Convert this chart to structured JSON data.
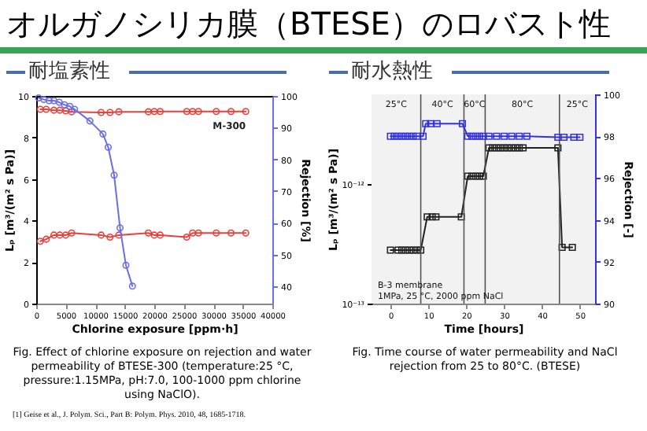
{
  "chart_data": [
    {
      "type": "line",
      "title": "オルガノシリカ膜（BTESE）のロバスト性",
      "subtitle": "耐塩素性",
      "xlabel": "Chlorine exposure [ppm·h]",
      "ylabel": "Lₚ [m³/(m² s Pa)]",
      "y2label": "Rejection [%]",
      "xlim": [
        0,
        40000
      ],
      "xticks": [
        0,
        5000,
        10000,
        15000,
        20000,
        25000,
        30000,
        35000,
        40000
      ],
      "ylim": [
        0,
        10
      ],
      "yticks": [
        0,
        2,
        4,
        6,
        8,
        10
      ],
      "y2lim": [
        34.5,
        100
      ],
      "y2ticks": [
        40,
        50,
        60,
        70,
        80,
        90,
        100
      ],
      "marker": "circle",
      "series": [
        {
          "name": "M-300",
          "color": "#e8413c",
          "axis": "y2",
          "x": [
            700,
            1700,
            3000,
            4000,
            5000,
            6000,
            11000,
            12500,
            14000,
            19000,
            20000,
            21000,
            25500,
            26500,
            27500,
            30500,
            33000,
            35500
          ],
          "values": [
            95.8,
            95.8,
            95.5,
            95.5,
            95.3,
            95,
            94.8,
            94.8,
            95,
            95,
            95.1,
            95.1,
            95.1,
            95.1,
            95.1,
            95.1,
            95.1,
            95.1
          ]
        },
        {
          "color": "#e8413c",
          "x": [
            700,
            1700,
            3000,
            4000,
            5000,
            6000,
            11000,
            12500,
            14000,
            19000,
            20000,
            21000,
            25500,
            26500,
            27500,
            30500,
            33000,
            35500
          ],
          "values": [
            3.0,
            3.1,
            3.3,
            3.3,
            3.3,
            3.4,
            3.3,
            3.2,
            3.3,
            3.4,
            3.3,
            3.3,
            3.2,
            3.4,
            3.4,
            3.4,
            3.4,
            3.4
          ]
        },
        {
          "color": "#6a6ee8",
          "axis": "y2",
          "x": [
            400,
            1300,
            2200,
            3000,
            3900,
            4800,
            5700,
            6500,
            9100,
            11300,
            12200,
            13200,
            14200,
            15200,
            16300
          ],
          "values": [
            99.4,
            98.9,
            98.5,
            98.5,
            98,
            97.2,
            96.7,
            95.8,
            92.1,
            88,
            83.8,
            75,
            58.4,
            46.6,
            40
          ]
        }
      ],
      "annotations": [
        "Fig. Effect of chlorine exposure on rejection and water permeability of BTESE-300 (temperature:25 °C, pressure:1.15MPa, pH:7.0, 100-1000 ppm chlorine using NaClO).",
        "[1] Geise et al., J. Polym. Sci., Part B: Polym. Phys. 2010, 48, 1685-1718."
      ]
    },
    {
      "type": "line",
      "title": "耐水熱性",
      "xlabel": "Time [hours]",
      "ylabel": "Lₚ [m³/(m² s Pa)]",
      "y2label": "Rejection [-]",
      "log": "y",
      "xlim": [
        -5,
        54
      ],
      "xticks": [
        0,
        10,
        20,
        30,
        40,
        50
      ],
      "ylim": [
        1e-13,
        5.6e-12
      ],
      "yticks": [
        {
          "value": 1e-13,
          "label": "10⁻¹³"
        },
        {
          "value": 1e-12,
          "label": "10⁻¹²"
        }
      ],
      "y2lim": [
        90,
        100
      ],
      "y2ticks": [
        90,
        92,
        94,
        96,
        98,
        100
      ],
      "marker": "square",
      "series": [
        {
          "color": "#222222",
          "x": [
            0,
            2,
            3,
            4,
            5,
            6,
            7,
            8,
            9.7,
            11,
            12,
            18.7,
            20.4,
            21.5,
            22.5,
            23.5,
            24.5,
            26,
            27,
            28,
            29,
            30,
            31,
            32,
            33,
            34,
            35,
            44.2,
            45.3,
            48
          ],
          "values": [
            2.8e-13,
            2.8e-13,
            2.8e-13,
            2.8e-13,
            2.8e-13,
            2.8e-13,
            2.8e-13,
            2.8e-13,
            5.3e-13,
            5.3e-13,
            5.3e-13,
            5.3e-13,
            1.16e-12,
            1.16e-12,
            1.16e-12,
            1.16e-12,
            1.16e-12,
            2e-12,
            2e-12,
            2e-12,
            2e-12,
            2e-12,
            2e-12,
            2e-12,
            2e-12,
            2e-12,
            2e-12,
            2e-12,
            2.95e-13,
            2.95e-13
          ]
        },
        {
          "color": "#3333dd",
          "axis": "y2",
          "x": [
            0,
            1,
            2,
            3,
            4,
            5,
            6,
            7,
            8.6,
            9.3,
            10.6,
            12.3,
            19,
            20.4,
            21.5,
            22.5,
            23.5,
            24.5,
            26,
            28,
            30,
            32,
            34,
            36,
            44.2,
            45.8,
            48.4,
            50
          ],
          "values": [
            98,
            98,
            98,
            98,
            98,
            98,
            98,
            98,
            98,
            98.6,
            98.6,
            98.6,
            98.6,
            98,
            98,
            98,
            98,
            98,
            98,
            98,
            98,
            98,
            98,
            98,
            97.95,
            97.95,
            97.95,
            97.95
          ]
        }
      ],
      "ref_lines": [
        {
          "axis": "x",
          "value": 8
        },
        {
          "axis": "x",
          "value": 19.4
        },
        {
          "axis": "x",
          "value": 25
        },
        {
          "axis": "x",
          "value": 44.6
        }
      ],
      "bands": [
        {
          "axis": "x",
          "from": -5,
          "to": 8,
          "label": "25°C",
          "color": "#f2f2f2"
        },
        {
          "axis": "x",
          "from": 8,
          "to": 19.4,
          "label": "40°C",
          "color": "#f2f2f2"
        },
        {
          "axis": "x",
          "from": 19.4,
          "to": 25,
          "label": "60°C",
          "color": "#f2f2f2"
        },
        {
          "axis": "x",
          "from": 25,
          "to": 44.6,
          "label": "80°C",
          "color": "#f2f2f2"
        },
        {
          "axis": "x",
          "from": 44.6,
          "to": 54,
          "label": "25°C",
          "color": "#f2f2f2"
        }
      ],
      "annotations": [
        "Fig. Time course of water permeability and NaCl rejection from 25 to 80°C. (BTESE)",
        "B-3 membrane",
        "1MPa, 25 °C, 2000 ppm NaCl"
      ]
    }
  ]
}
